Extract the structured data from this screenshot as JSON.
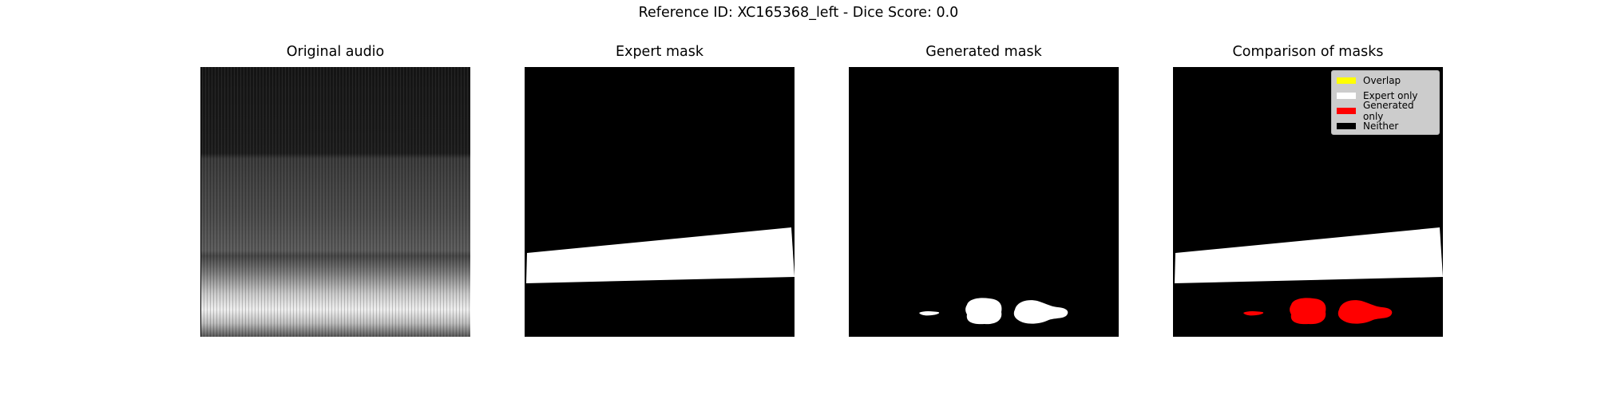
{
  "figure": {
    "title": "Reference ID: XC165368_left - Dice Score: 0.0"
  },
  "panels": [
    {
      "id": "original",
      "title": "Original audio"
    },
    {
      "id": "expert",
      "title": "Expert mask"
    },
    {
      "id": "generated",
      "title": "Generated mask"
    },
    {
      "id": "comparison",
      "title": "Comparison of masks"
    }
  ],
  "legend": {
    "items": [
      {
        "label": "Overlap",
        "color": "#ffff00"
      },
      {
        "label": "Expert only",
        "color": "#ffffff"
      },
      {
        "label": "Generated only",
        "color": "#ff0000"
      },
      {
        "label": "Neither",
        "color": "#000000"
      }
    ]
  },
  "colors": {
    "background": "#000000",
    "expert": "#ffffff",
    "generated_in_mask": "#ffffff",
    "generated_in_comparison": "#ff0000"
  }
}
